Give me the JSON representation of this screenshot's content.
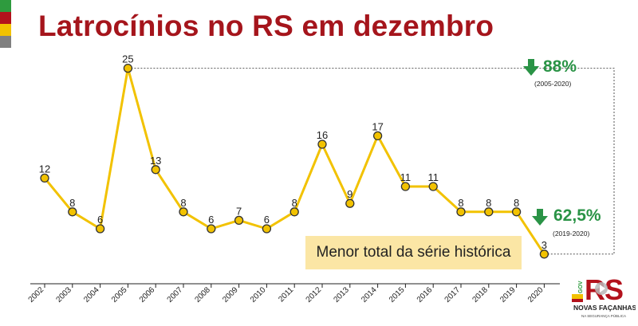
{
  "header": {
    "title": "Latrocínios no RS em dezembro"
  },
  "chart_data": {
    "type": "line",
    "categories": [
      "2002",
      "2003",
      "2004",
      "2005",
      "2006",
      "2007",
      "2008",
      "2009",
      "2010",
      "2011",
      "2012",
      "2013",
      "2014",
      "2015",
      "2016",
      "2017",
      "2018",
      "2019",
      "2020"
    ],
    "values": [
      12,
      8,
      6,
      25,
      13,
      8,
      6,
      7,
      6,
      8,
      16,
      9,
      17,
      11,
      11,
      8,
      8,
      8,
      3
    ],
    "title": "Latrocínios no RS em dezembro",
    "xlabel": "",
    "ylabel": "",
    "grid": false,
    "line_color": "#f2c200",
    "marker_color": "#f2c200",
    "annotations": [
      {
        "pct": "88%",
        "range": "(2005-2020)",
        "direction": "down",
        "color": "#2a9346"
      },
      {
        "pct": "62,5%",
        "range": "(2019-2020)",
        "direction": "down",
        "color": "#2a9346"
      }
    ]
  },
  "note": {
    "text": "Menor total da série histórica",
    "background": "#fbe6a5"
  },
  "logo": {
    "vertical_text": "GOV",
    "letters": "RS",
    "line1": "NOVAS FAÇANHAS",
    "line2": "NA SEGURANÇA PÚBLICA"
  },
  "colors": {
    "brand_red": "#a5151c",
    "green": "#2a9346",
    "yellow": "#f2c200"
  }
}
